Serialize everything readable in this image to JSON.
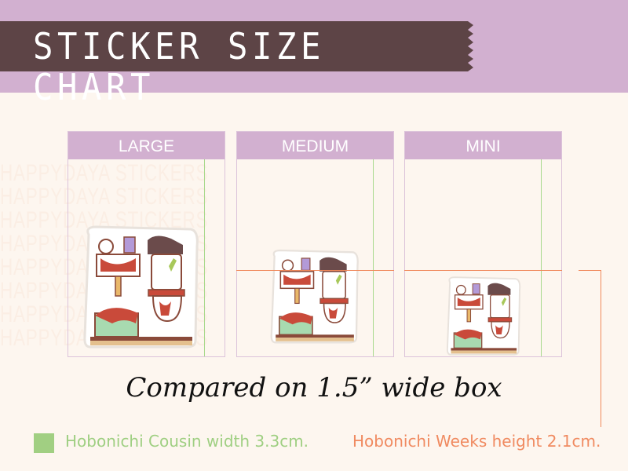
{
  "header": {
    "title": "STICKER SIZE CHART"
  },
  "watermark": "HAPPYDAYA STICKERS",
  "panels": [
    {
      "label": "LARGE"
    },
    {
      "label": "MEDIUM"
    },
    {
      "label": "MINI"
    }
  ],
  "caption": "Compared on 1.5” wide box",
  "legend": {
    "green": {
      "label": "Hobonichi Cousin width 3.3cm.",
      "color": "#9fcf82"
    },
    "orange": {
      "label": "Hobonichi Weeks height 2.1cm.",
      "color": "#f08a60"
    }
  },
  "colors": {
    "band": "#d2b0d0",
    "ribbon": "#5d4446",
    "background": "#fdf6ef"
  }
}
